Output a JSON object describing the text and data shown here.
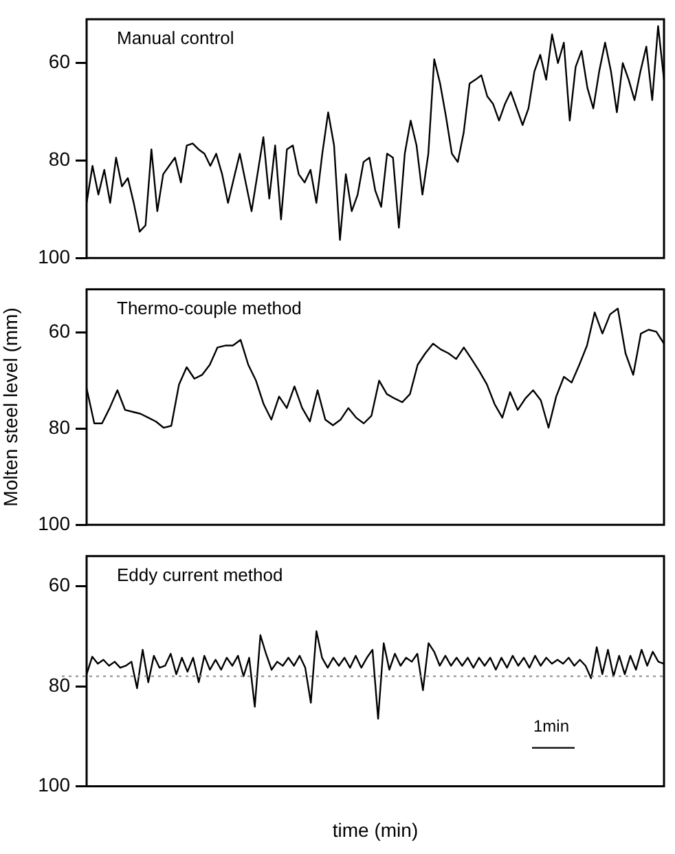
{
  "chart_data": [
    {
      "type": "line",
      "title": "Manual control",
      "color": "#000000",
      "categories": [
        null,
        null,
        null,
        null,
        null,
        null,
        null,
        null,
        null,
        null,
        null,
        null,
        null,
        null,
        null,
        null,
        null,
        null,
        null,
        null,
        null,
        null,
        null,
        null,
        null,
        null,
        null,
        null,
        null,
        null,
        null,
        null,
        null,
        null,
        null,
        null,
        null,
        null,
        null,
        null,
        null,
        null,
        null,
        null,
        null,
        null,
        null,
        null,
        null,
        null,
        null,
        null,
        null,
        null,
        null,
        null,
        null,
        null,
        null,
        null,
        null,
        null,
        null,
        null,
        null,
        null,
        null,
        null,
        null,
        null,
        null,
        null,
        null,
        null,
        null,
        null,
        null,
        null,
        null,
        null,
        null,
        null,
        null,
        null,
        null,
        null,
        null,
        null,
        null,
        null,
        null,
        null,
        null,
        null,
        null,
        null,
        null,
        null,
        null
      ],
      "values": [
        88.7,
        81.1,
        87.0,
        81.9,
        88.7,
        79.4,
        85.3,
        83.6,
        88.7,
        94.6,
        93.3,
        77.7,
        90.4,
        82.8,
        81.1,
        79.4,
        84.5,
        76.9,
        76.5,
        77.7,
        78.6,
        81.1,
        78.6,
        82.8,
        88.7,
        83.6,
        78.6,
        84.5,
        90.4,
        82.8,
        75.2,
        87.8,
        76.9,
        92.1,
        77.7,
        76.9,
        82.8,
        84.5,
        81.9,
        88.7,
        78.6,
        70.1,
        76.9,
        96.3,
        82.8,
        90.4,
        87.0,
        80.3,
        79.4,
        86.2,
        89.5,
        78.6,
        79.4,
        93.8,
        78.6,
        71.8,
        76.9,
        87.0,
        78.6,
        59.2,
        64.2,
        71.0,
        78.6,
        80.3,
        74.3,
        64.2,
        63.4,
        62.5,
        66.8,
        68.4,
        71.8,
        68.4,
        65.9,
        69.3,
        72.7,
        69.3,
        61.7,
        58.3,
        63.4,
        54.1,
        60.0,
        55.8,
        71.8,
        60.8,
        57.5,
        65.1,
        69.3,
        61.7,
        55.8,
        61.7,
        70.1,
        60.0,
        63.4,
        67.6,
        61.7,
        56.6,
        67.6,
        52.4,
        63.4
      ],
      "ylim": [
        100,
        51
      ],
      "yticks": [
        60,
        80,
        100
      ]
    },
    {
      "type": "line",
      "title": "Thermo-couple method",
      "ylabel": "Molten steel level (mm)",
      "color": "#000000",
      "categories": [
        null,
        null,
        null,
        null,
        null,
        null,
        null,
        null,
        null,
        null,
        null,
        null,
        null,
        null,
        null,
        null,
        null,
        null,
        null,
        null,
        null,
        null,
        null,
        null,
        null,
        null,
        null,
        null,
        null,
        null,
        null,
        null,
        null,
        null,
        null,
        null,
        null,
        null,
        null,
        null,
        null,
        null,
        null,
        null,
        null,
        null,
        null,
        null,
        null,
        null,
        null,
        null,
        null,
        null,
        null,
        null,
        null,
        null,
        null,
        null,
        null,
        null,
        null,
        null,
        null,
        null,
        null,
        null,
        null,
        null,
        null,
        null,
        null,
        null,
        null,
        null
      ],
      "values": [
        71.6,
        78.9,
        78.9,
        75.7,
        72.0,
        76.1,
        76.5,
        76.9,
        77.7,
        78.5,
        79.8,
        79.4,
        70.8,
        67.2,
        69.6,
        68.8,
        66.7,
        63.1,
        62.7,
        62.7,
        61.5,
        66.7,
        70.0,
        74.9,
        78.1,
        73.3,
        75.7,
        71.2,
        75.7,
        78.5,
        72.0,
        78.1,
        79.3,
        78.1,
        75.7,
        77.7,
        78.9,
        77.3,
        70.0,
        72.8,
        73.7,
        74.5,
        72.8,
        66.7,
        64.3,
        62.3,
        63.5,
        64.3,
        65.5,
        63.1,
        65.5,
        68.0,
        70.8,
        74.9,
        77.7,
        72.4,
        76.1,
        73.7,
        72.0,
        74.1,
        79.8,
        73.3,
        69.2,
        70.4,
        66.7,
        62.7,
        55.8,
        60.2,
        56.2,
        55.0,
        64.3,
        68.8,
        60.2,
        59.4,
        59.8,
        62.3
      ],
      "ylim": [
        100,
        51
      ],
      "yticks": [
        60,
        80,
        100
      ]
    },
    {
      "type": "line",
      "title": "Eddy current method",
      "xlabel": "time (min)",
      "color": "#000000",
      "categories": [
        null,
        null,
        null,
        null,
        null,
        null,
        null,
        null,
        null,
        null,
        null,
        null,
        null,
        null,
        null,
        null,
        null,
        null,
        null,
        null,
        null,
        null,
        null,
        null,
        null,
        null,
        null,
        null,
        null,
        null,
        null,
        null,
        null,
        null,
        null,
        null,
        null,
        null,
        null,
        null,
        null,
        null,
        null,
        null,
        null,
        null,
        null,
        null,
        null,
        null,
        null,
        null,
        null,
        null,
        null,
        null,
        null,
        null,
        null,
        null,
        null,
        null,
        null,
        null,
        null,
        null,
        null,
        null,
        null,
        null,
        null,
        null,
        null,
        null,
        null,
        null,
        null,
        null,
        null,
        null,
        null,
        null,
        null,
        null,
        null,
        null,
        null,
        null,
        null,
        null,
        null,
        null,
        null,
        null,
        null,
        null,
        null,
        null,
        null,
        null,
        null,
        null,
        null,
        null
      ],
      "values": [
        77.6,
        74.1,
        75.5,
        74.7,
        75.9,
        75.1,
        76.3,
        75.9,
        75.1,
        80.4,
        72.7,
        79.2,
        73.9,
        76.3,
        75.9,
        73.5,
        77.6,
        74.3,
        77.1,
        74.3,
        79.2,
        73.9,
        76.7,
        74.7,
        76.7,
        74.3,
        75.9,
        73.9,
        78.0,
        74.3,
        84.1,
        69.8,
        73.5,
        76.7,
        75.1,
        75.9,
        74.3,
        75.9,
        73.9,
        76.3,
        83.3,
        69.0,
        74.3,
        76.3,
        74.3,
        75.9,
        74.3,
        76.3,
        73.9,
        76.3,
        74.3,
        72.7,
        86.5,
        71.4,
        76.7,
        73.5,
        75.9,
        74.3,
        75.1,
        73.5,
        80.8,
        71.4,
        73.1,
        75.9,
        73.9,
        75.9,
        74.3,
        75.9,
        74.3,
        76.3,
        74.3,
        75.9,
        74.3,
        76.7,
        74.3,
        76.3,
        73.9,
        75.9,
        74.3,
        76.3,
        73.9,
        75.9,
        74.3,
        75.5,
        74.7,
        75.5,
        74.3,
        75.9,
        74.7,
        75.9,
        78.4,
        72.2,
        77.6,
        72.7,
        78.0,
        73.9,
        77.6,
        73.9,
        76.7,
        72.7,
        75.9,
        73.1,
        75.1,
        75.5
      ],
      "ylim": [
        100,
        54
      ],
      "yticks": [
        60,
        80,
        100
      ],
      "ref_lines": [
        {
          "axis": "y",
          "value": 78,
          "color": "#888888",
          "line_style": "dotted"
        }
      ],
      "annotations": [
        "1min"
      ]
    }
  ]
}
